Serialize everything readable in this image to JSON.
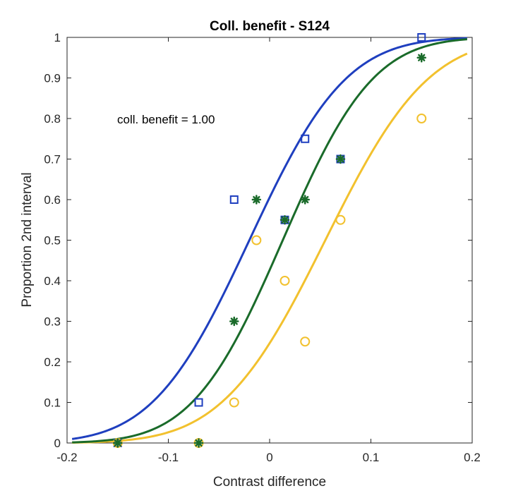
{
  "chart_data": {
    "type": "scatter",
    "title": "Coll. benefit - S124",
    "xlabel": "Contrast difference",
    "ylabel": "Proportion 2nd interval",
    "xlim": [
      -0.2,
      0.2
    ],
    "ylim": [
      0,
      1
    ],
    "xticks": [
      -0.2,
      -0.1,
      0,
      0.1,
      0.2
    ],
    "xtick_labels": [
      "-0.2",
      "-0.1",
      "0",
      "0.1",
      "0.2"
    ],
    "yticks": [
      0,
      0.1,
      0.2,
      0.3,
      0.4,
      0.5,
      0.6,
      0.7,
      0.8,
      0.9,
      1
    ],
    "ytick_labels": [
      "0",
      "0.1",
      "0.2",
      "0.3",
      "0.4",
      "0.5",
      "0.6",
      "0.7",
      "0.8",
      "0.9",
      "1"
    ],
    "grid": false,
    "annotation": "coll. benefit = 1.00",
    "series": [
      {
        "marker": "square",
        "color": "#1f3fbf",
        "points": [
          [
            -0.15,
            0.0
          ],
          [
            -0.07,
            0.1
          ],
          [
            -0.035,
            0.6
          ],
          [
            0.015,
            0.55
          ],
          [
            0.035,
            0.75
          ],
          [
            0.07,
            0.7
          ],
          [
            0.15,
            1.0
          ]
        ],
        "fit": {
          "mu": -0.02,
          "sigma": 0.075
        }
      },
      {
        "marker": "circle",
        "color": "#f2c12e",
        "points": [
          [
            -0.15,
            0.0
          ],
          [
            -0.07,
            0.0
          ],
          [
            -0.035,
            0.1
          ],
          [
            -0.013,
            0.5
          ],
          [
            0.015,
            0.4
          ],
          [
            0.035,
            0.25
          ],
          [
            0.07,
            0.55
          ],
          [
            0.15,
            0.8
          ]
        ],
        "fit": {
          "mu": 0.055,
          "sigma": 0.08
        }
      },
      {
        "marker": "asterisk",
        "color": "#1a6b2a",
        "points": [
          [
            -0.15,
            0.0
          ],
          [
            -0.07,
            0.0
          ],
          [
            -0.035,
            0.3
          ],
          [
            -0.013,
            0.6
          ],
          [
            0.015,
            0.55
          ],
          [
            0.035,
            0.6
          ],
          [
            0.07,
            0.7
          ],
          [
            0.15,
            0.95
          ]
        ],
        "fit": {
          "mu": 0.013,
          "sigma": 0.07
        }
      }
    ]
  }
}
